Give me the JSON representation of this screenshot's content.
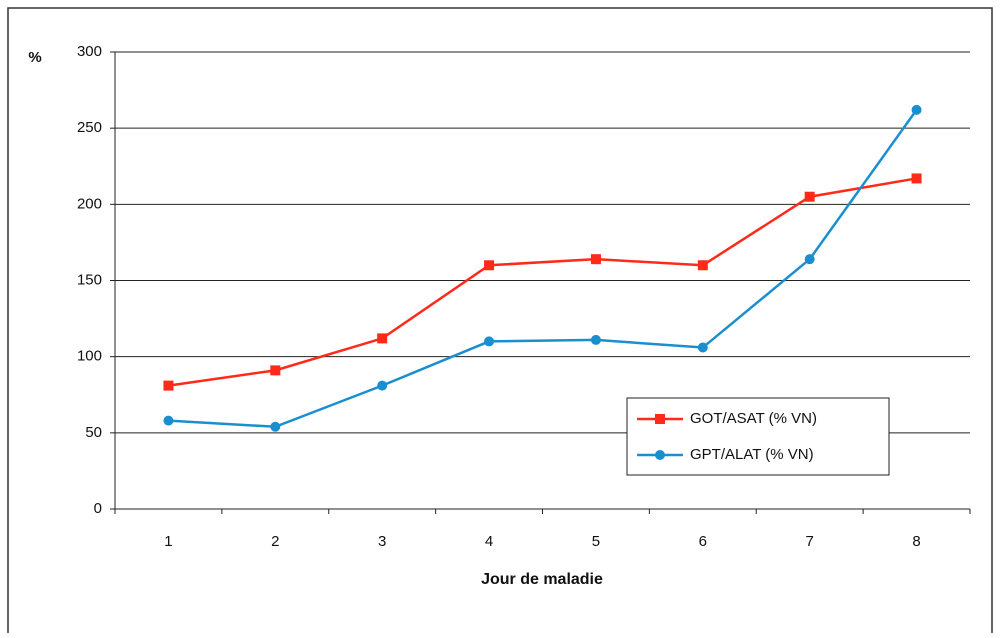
{
  "chart_data": {
    "type": "line",
    "y_label": "%",
    "x_label": "Jour de maladie",
    "categories": [
      "1",
      "2",
      "3",
      "4",
      "5",
      "6",
      "7",
      "8"
    ],
    "series": [
      {
        "name": "GOT/ASAT (% VN)",
        "color": "#ff2a1a",
        "marker": "square",
        "values": [
          81,
          91,
          112,
          160,
          164,
          160,
          205,
          217
        ]
      },
      {
        "name": "GPT/ALAT (% VN)",
        "color": "#1a8fd0",
        "marker": "circle",
        "values": [
          58,
          54,
          81,
          110,
          111,
          106,
          164,
          262
        ]
      }
    ],
    "ylim": [
      0,
      300
    ],
    "yticks": [
      0,
      50,
      100,
      150,
      200,
      250,
      300
    ],
    "grid": true,
    "legend": "lower right"
  }
}
